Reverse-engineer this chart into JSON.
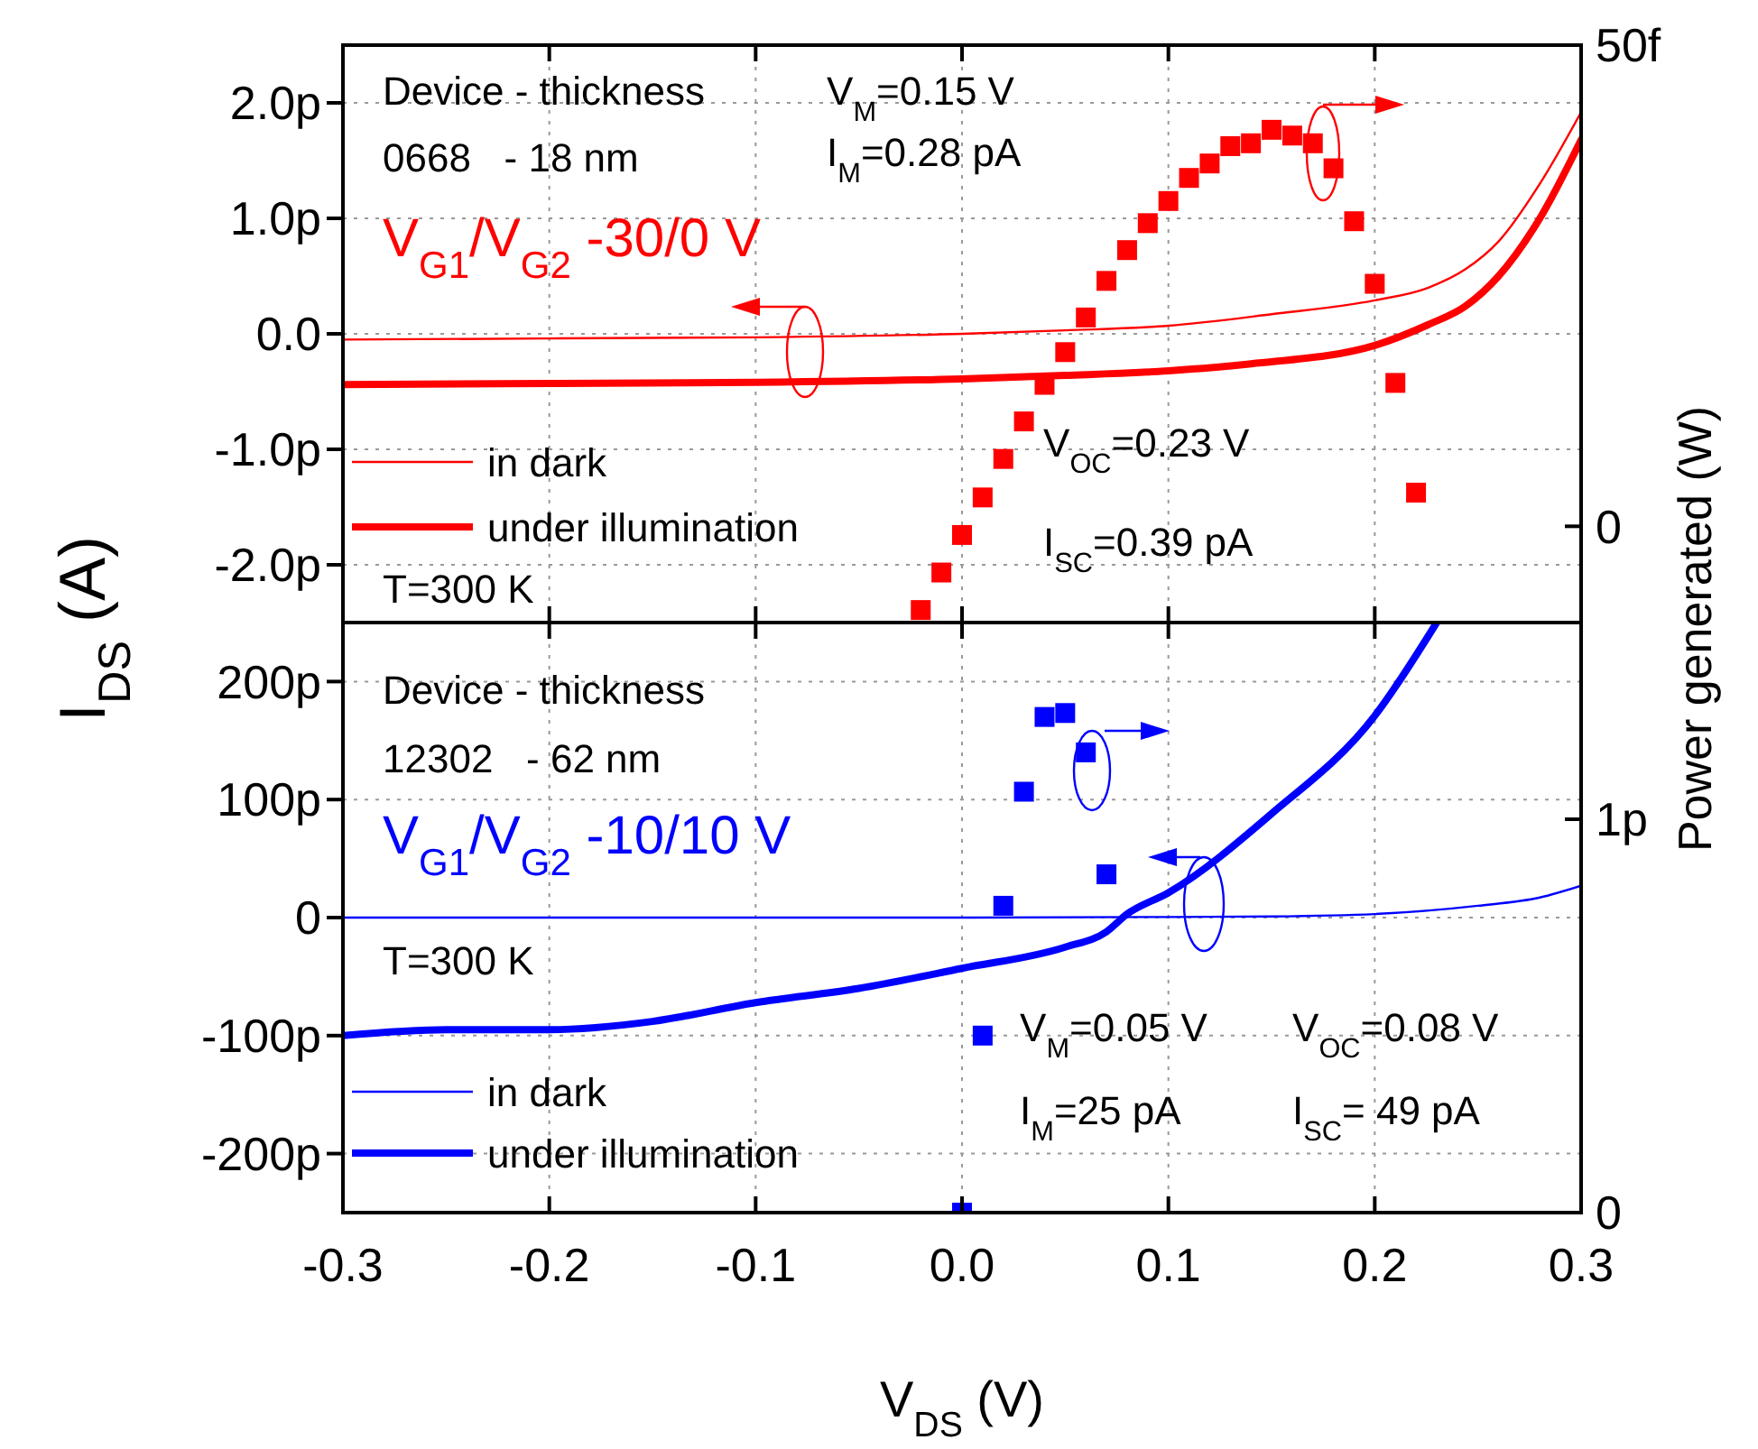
{
  "chart_data": [
    {
      "type": "line",
      "ylabel": "I$_{DS}$ (A)",
      "y2label": "Power generated (W)",
      "legend": "bottom left",
      "grid": true,
      "tick_labels": "y",
      "annotations": [
        "Device - thickness",
        "0668   - 18 nm",
        "V$_{G1}$/V$_{G2}$ -30/0 V",
        "V$_{M}$=0.15 V",
        "I$_{M}$=0.28 pA",
        "V$_{OC}$=0.23 V",
        "I$_{SC}$=0.39 pA",
        "T=300 K"
      ],
      "xlim": [
        -0.3,
        0.3
      ],
      "xticks": [
        -0.3,
        -0.2,
        -0.1,
        0,
        0.1,
        0.2,
        0.3
      ],
      "ylim": [
        -2.5,
        2.5
      ],
      "yticks": [
        {
          "value": -2,
          "label": "-2.0p"
        },
        {
          "value": -1,
          "label": "-1.0p"
        },
        {
          "value": 0,
          "label": "0.0"
        },
        {
          "value": 1,
          "label": "1.0p"
        },
        {
          "value": 2,
          "label": "2.0p"
        }
      ],
      "y2lim": [
        -10,
        50
      ],
      "y2ticks": [
        0,
        {
          "value": 50,
          "label": "50f"
        }
      ],
      "series": [
        {
          "name": "in dark",
          "color": "#ff0000",
          "x": [
            -0.3,
            -0.2,
            -0.1,
            0,
            0.05,
            0.1,
            0.15,
            0.2,
            0.226,
            0.244,
            0.26,
            0.28,
            0.3
          ],
          "values": [
            -0.05,
            -0.04,
            -0.03,
            0,
            0.03,
            0.07,
            0.17,
            0.29,
            0.4,
            0.56,
            0.8,
            1.3,
            1.92
          ]
        },
        {
          "name": "under illumination",
          "color": "#ff0000",
          "x": [
            -0.3,
            -0.2,
            -0.1,
            0,
            0.05,
            0.1,
            0.14,
            0.2,
            0.226,
            0.244,
            0.26,
            0.28,
            0.3
          ],
          "values": [
            -0.44,
            -0.43,
            -0.42,
            -0.39,
            -0.36,
            -0.32,
            -0.26,
            -0.1,
            0.08,
            0.24,
            0.5,
            1.0,
            1.68
          ]
        },
        {
          "type": "scatter",
          "marker": "square",
          "axis": "y2",
          "color": "#ff0000",
          "x": [
            -0.02,
            -0.01,
            0,
            0.01,
            0.02,
            0.03,
            0.04,
            0.05,
            0.06,
            0.07,
            0.08,
            0.09,
            0.1,
            0.11,
            0.12,
            0.13,
            0.14,
            0.15,
            0.16,
            0.17,
            0.18,
            0.19,
            0.2,
            0.21,
            0.22
          ],
          "values": [
            -8.7,
            -4.8,
            -0.9,
            3,
            7,
            10.9,
            14.7,
            18.1,
            21.7,
            25.5,
            28.7,
            31.5,
            33.8,
            36.2,
            37.7,
            39.5,
            39.8,
            41.2,
            40.6,
            39.8,
            37.2,
            31.7,
            25.2,
            14.9,
            3.5
          ]
        }
      ]
    },
    {
      "type": "line",
      "xlabel": "V$_{DS}$ (V)",
      "legend": "bottom left",
      "grid": true,
      "annotations": [
        "Device - thickness",
        "12302   - 62 nm",
        "V$_{G1}$/V$_{G2}$ -10/10 V",
        "T=300 K",
        "V$_{M}$=0.05 V",
        "V$_{OC}$=0.08 V",
        "I$_{M}$=25 pA",
        "I$_{SC}$= 49 pA"
      ],
      "xlim": [
        -0.3,
        0.3
      ],
      "xticks": [
        -0.3,
        -0.2,
        -0.1,
        {
          "value": 0,
          "label": "0.0"
        },
        0.1,
        0.2,
        0.3
      ],
      "ylim": [
        -250,
        250
      ],
      "yticks": [
        {
          "value": -200,
          "label": "-200p"
        },
        {
          "value": -100,
          "label": "-100p"
        },
        0,
        {
          "value": 100,
          "label": "100p"
        },
        {
          "value": 200,
          "label": "200p"
        }
      ],
      "y2lim": [
        0,
        1.5
      ],
      "y2ticks": [
        0,
        {
          "value": 1,
          "label": "1p"
        }
      ],
      "series": [
        {
          "name": "in dark",
          "color": "#0000ff",
          "x": [
            -0.3,
            0,
            0.1,
            0.15,
            0.2,
            0.25,
            0.28,
            0.3
          ],
          "values": [
            0,
            0,
            0.5,
            1,
            3,
            10,
            17,
            27
          ]
        },
        {
          "name": "under illumination",
          "color": "#0000ff",
          "x": [
            -0.3,
            -0.25,
            -0.2,
            -0.15,
            -0.1,
            -0.05,
            0,
            0.05,
            0.07,
            0.08,
            0.1,
            0.15,
            0.2,
            0.23
          ],
          "values": [
            -100,
            -95,
            -95,
            -88,
            -72,
            -60,
            -43,
            -25,
            -12,
            3,
            21,
            88,
            171,
            250
          ]
        },
        {
          "type": "scatter",
          "marker": "square",
          "axis": "y2",
          "color": "#0000ff",
          "x": [
            0,
            0.01,
            0.02,
            0.03,
            0.04,
            0.05,
            0.06,
            0.07
          ],
          "values": [
            0,
            0.45,
            0.78,
            1.07,
            1.26,
            1.27,
            1.17,
            0.86
          ]
        }
      ]
    }
  ]
}
